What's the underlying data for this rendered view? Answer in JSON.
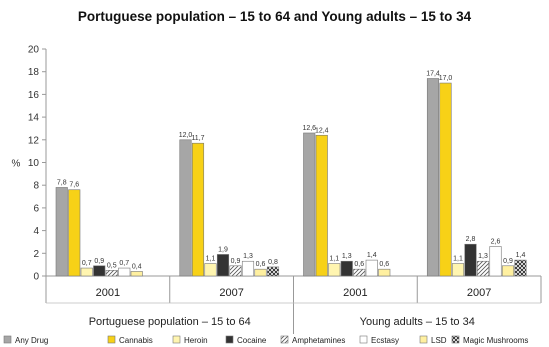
{
  "chart_data": {
    "type": "bar",
    "title": "Portuguese population – 15 to 64 and Young adults – 15 to 34",
    "ylabel": "%",
    "xlabel": "",
    "ylim": [
      0,
      20
    ],
    "yticks": [
      0,
      2,
      4,
      6,
      8,
      10,
      12,
      14,
      16,
      18,
      20
    ],
    "grid": false,
    "legend_position": "bottom",
    "groups": [
      "Portuguese population – 15 to 64",
      "Young adults – 15 to 34"
    ],
    "categories": [
      "2001",
      "2007",
      "2001",
      "2007"
    ],
    "series": [
      {
        "name": "Any Drug",
        "color": "#a6a6a6",
        "pattern": "solid",
        "values": [
          7.8,
          12.0,
          12.6,
          17.4
        ],
        "labels": [
          "7,8",
          "12,0",
          "12,6",
          "17,4"
        ]
      },
      {
        "name": "Cannabis",
        "color": "#f7d117",
        "pattern": "solid",
        "values": [
          7.6,
          11.7,
          12.4,
          17.0
        ],
        "labels": [
          "7,6",
          "11,7",
          "12,4",
          "17,0"
        ]
      },
      {
        "name": "Heroin",
        "color": "#fff5b0",
        "pattern": "solid",
        "values": [
          0.7,
          1.1,
          1.1,
          1.1
        ],
        "labels": [
          "0,7",
          "1,1",
          "1,1",
          "1,1"
        ]
      },
      {
        "name": "Cocaine",
        "color": "#333333",
        "pattern": "solid",
        "values": [
          0.9,
          1.9,
          1.3,
          2.8
        ],
        "labels": [
          "0,9",
          "1,9",
          "1,3",
          "2,8"
        ]
      },
      {
        "name": "Amphetamines",
        "color": "#ffffff",
        "pattern": "hatch",
        "values": [
          0.5,
          0.9,
          0.6,
          1.3
        ],
        "labels": [
          "0,5",
          "0,9",
          "0,6",
          "1,3"
        ]
      },
      {
        "name": "Ecstasy",
        "color": "#ffffff",
        "pattern": "solid",
        "values": [
          0.7,
          1.3,
          1.4,
          2.6
        ],
        "labels": [
          "0,7",
          "1,3",
          "1,4",
          "2,6"
        ]
      },
      {
        "name": "LSD",
        "color": "#fff0a0",
        "pattern": "solid",
        "values": [
          0.4,
          0.6,
          0.6,
          0.9
        ],
        "labels": [
          "0,4",
          "0,6",
          "0,6",
          "0,9"
        ]
      },
      {
        "name": "Magic Mushrooms",
        "color": "#ffffff",
        "pattern": "crosshatch",
        "values": [
          null,
          0.8,
          null,
          1.4
        ],
        "labels": [
          "",
          "0,8",
          "",
          "1,4"
        ]
      }
    ]
  }
}
